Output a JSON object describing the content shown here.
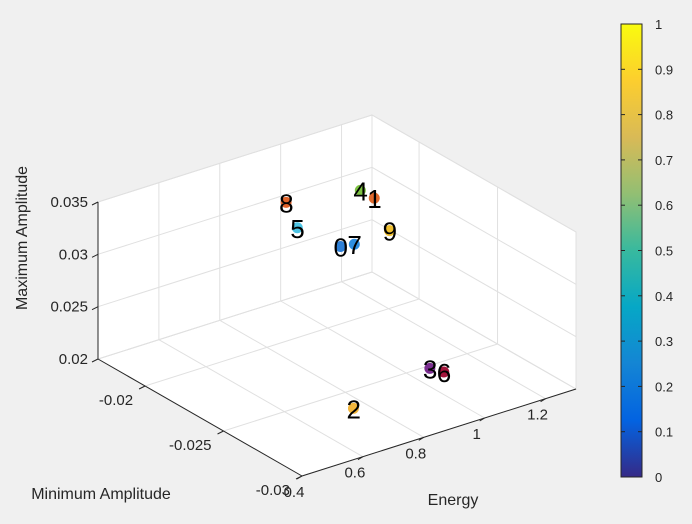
{
  "chart_data": {
    "type": "scatter",
    "dimensions": 3,
    "xlabel": "Energy",
    "ylabel": "Minimum Amplitude",
    "zlabel": "Maximum Amplitude",
    "xlim": [
      0.4,
      1.3
    ],
    "ylim": [
      -0.03,
      -0.017
    ],
    "zlim": [
      0.02,
      0.035
    ],
    "x_ticks": [
      "0.4",
      "0.6",
      "0.8",
      "1",
      "1.2"
    ],
    "x_tick_values": [
      0.4,
      0.6,
      0.8,
      1.0,
      1.2
    ],
    "y_ticks": [
      "-0.03",
      "-0.025",
      "-0.02"
    ],
    "y_tick_values": [
      -0.03,
      -0.025,
      -0.02
    ],
    "z_ticks": [
      "0.02",
      "0.025",
      "0.03",
      "0.035"
    ],
    "z_tick_values": [
      0.02,
      0.025,
      0.03,
      0.035
    ],
    "grid": true,
    "colorbar": {
      "colormap": "parula",
      "range": [
        0,
        1
      ],
      "ticks": [
        "0",
        "0.1",
        "0.2",
        "0.3",
        "0.4",
        "0.5",
        "0.6",
        "0.7",
        "0.8",
        "0.9",
        "1"
      ],
      "tick_values": [
        0,
        0.1,
        0.2,
        0.3,
        0.4,
        0.5,
        0.6,
        0.7,
        0.8,
        0.9,
        1
      ],
      "colors": [
        "#352a87",
        "#0363e1",
        "#1485d4",
        "#06a7c6",
        "#38b99e",
        "#92bf73",
        "#d9ba56",
        "#fcce2e",
        "#f9fb0e"
      ]
    },
    "points": [
      {
        "label": "0",
        "x": 0.98,
        "y": -0.0212,
        "z": 0.029,
        "color": "#2d7fd6"
      },
      {
        "label": "1",
        "x": 1.06,
        "y": -0.0218,
        "z": 0.0334,
        "color": "#e06a2e"
      },
      {
        "label": "2",
        "x": 0.6,
        "y": -0.0294,
        "z": 0.0241,
        "color": "#f2b63c"
      },
      {
        "label": "3",
        "x": 0.82,
        "y": -0.03,
        "z": 0.0264,
        "color": "#7a2d8f"
      },
      {
        "label": "4",
        "x": 1.04,
        "y": -0.0213,
        "z": 0.0339,
        "color": "#7cc142"
      },
      {
        "label": "5",
        "x": 0.9,
        "y": -0.02,
        "z": 0.0305,
        "color": "#4cc3e3"
      },
      {
        "label": "6",
        "x": 0.84,
        "y": -0.0305,
        "z": 0.0263,
        "color": "#a2143a"
      },
      {
        "label": "7",
        "x": 1.01,
        "y": -0.0215,
        "z": 0.0292,
        "color": "#2f8fe0"
      },
      {
        "label": "8",
        "x": 0.92,
        "y": -0.0189,
        "z": 0.0318,
        "color": "#e0632a"
      },
      {
        "label": "9",
        "x": 1.1,
        "y": -0.022,
        "z": 0.0301,
        "color": "#f0c030"
      }
    ]
  }
}
